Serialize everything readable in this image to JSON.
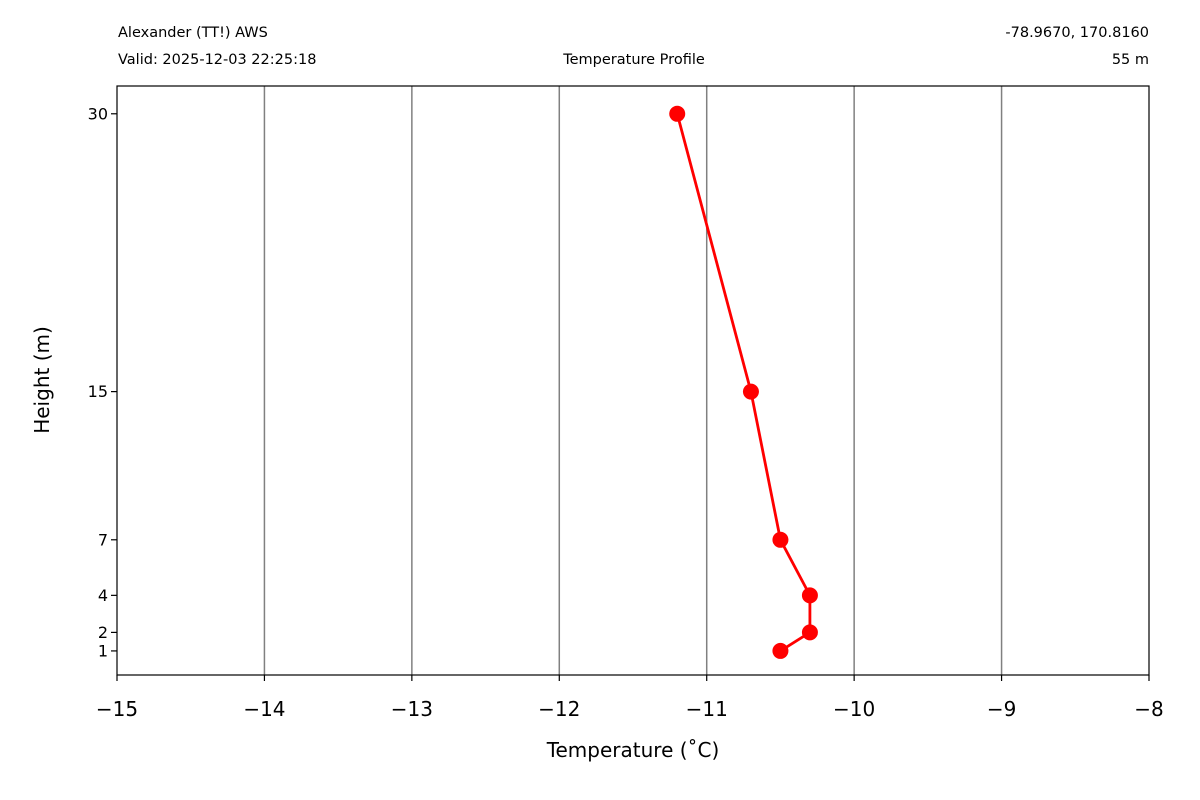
{
  "header": {
    "station": "Alexander (TT!) AWS",
    "valid": "Valid: 2025-12-03 22:25:18",
    "title": "Temperature Profile",
    "coords": "-78.9670, 170.8160",
    "elevation": "55 m"
  },
  "chart_data": {
    "type": "line",
    "title": "Temperature Profile",
    "xlabel": "Temperature (˚C)",
    "ylabel": "Height (m)",
    "xlim": [
      -15,
      -8
    ],
    "ylim": [
      -0.3,
      31.5
    ],
    "x_ticks": [
      -15,
      -14,
      -13,
      -12,
      -11,
      -10,
      -9,
      -8
    ],
    "x_tick_labels": [
      "−15",
      "−14",
      "−13",
      "−12",
      "−11",
      "−10",
      "−9",
      "−8"
    ],
    "y_ticks": [
      1,
      2,
      4,
      7,
      15,
      30
    ],
    "y_tick_labels": [
      "1",
      "2",
      "4",
      "7",
      "15",
      "30"
    ],
    "grid": "vertical",
    "series": [
      {
        "color": "#ff0000",
        "marker": "circle",
        "points": [
          {
            "x": -10.5,
            "y": 1
          },
          {
            "x": -10.3,
            "y": 2
          },
          {
            "x": -10.3,
            "y": 4
          },
          {
            "x": -10.5,
            "y": 7
          },
          {
            "x": -10.7,
            "y": 15
          },
          {
            "x": -11.2,
            "y": 30
          }
        ]
      }
    ]
  }
}
